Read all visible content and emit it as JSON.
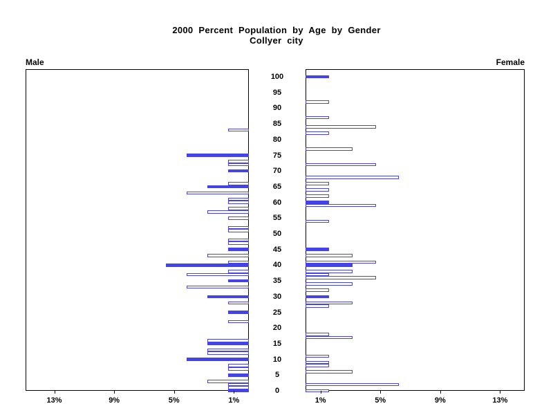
{
  "chart_data": {
    "type": "bar",
    "variant": "population-pyramid",
    "title": "2000 Percent Population by Age by Gender",
    "subtitle": "Collyer city",
    "left_panel_label": "Male",
    "right_panel_label": "Female",
    "x_axis": {
      "unit": "%",
      "max_percent": 15,
      "male_tick_labels": [
        "13%",
        "9%",
        "5%",
        "1%"
      ],
      "male_tick_percents": [
        13,
        9,
        5,
        1
      ],
      "female_tick_labels": [
        "1%",
        "5%",
        "9%",
        "13%"
      ],
      "female_tick_percents": [
        1,
        5,
        9,
        13
      ]
    },
    "y_axis": {
      "min_age": 0,
      "max_age": 100,
      "tick_interval": 5,
      "tick_ages": [
        0,
        5,
        10,
        15,
        20,
        25,
        30,
        35,
        40,
        45,
        50,
        55,
        60,
        65,
        70,
        75,
        80,
        85,
        90,
        95,
        100
      ]
    },
    "colors": {
      "bar_blue": "#4343e8",
      "axis_black": "#000000",
      "background": "#ffffff"
    },
    "male_bars": [
      {
        "age": 0,
        "percent": 1.39,
        "solid": true
      },
      {
        "age": 1,
        "percent": 1.39,
        "solid": false
      },
      {
        "age": 2,
        "percent": 1.39,
        "solid": false
      },
      {
        "age": 3,
        "percent": 2.78,
        "solid": false
      },
      {
        "age": 5,
        "percent": 1.39,
        "solid": true
      },
      {
        "age": 7,
        "percent": 1.39,
        "solid": false
      },
      {
        "age": 8,
        "percent": 1.39,
        "solid": false
      },
      {
        "age": 10,
        "percent": 4.17,
        "solid": true
      },
      {
        "age": 12,
        "percent": 2.78,
        "solid": false
      },
      {
        "age": 13,
        "percent": 2.78,
        "solid": false
      },
      {
        "age": 15,
        "percent": 2.78,
        "solid": true
      },
      {
        "age": 16,
        "percent": 2.78,
        "solid": false
      },
      {
        "age": 22,
        "percent": 1.39,
        "solid": false
      },
      {
        "age": 25,
        "percent": 1.39,
        "solid": true
      },
      {
        "age": 28,
        "percent": 1.39,
        "solid": false
      },
      {
        "age": 30,
        "percent": 2.78,
        "solid": true
      },
      {
        "age": 33,
        "percent": 4.17,
        "solid": false
      },
      {
        "age": 35,
        "percent": 1.39,
        "solid": true
      },
      {
        "age": 37,
        "percent": 4.17,
        "solid": false
      },
      {
        "age": 38,
        "percent": 1.39,
        "solid": false
      },
      {
        "age": 40,
        "percent": 5.56,
        "solid": true
      },
      {
        "age": 41,
        "percent": 1.39,
        "solid": false
      },
      {
        "age": 43,
        "percent": 2.78,
        "solid": false
      },
      {
        "age": 45,
        "percent": 1.39,
        "solid": true
      },
      {
        "age": 47,
        "percent": 1.39,
        "solid": false
      },
      {
        "age": 48,
        "percent": 1.39,
        "solid": false
      },
      {
        "age": 51,
        "percent": 1.39,
        "solid": false
      },
      {
        "age": 52,
        "percent": 1.39,
        "solid": false
      },
      {
        "age": 55,
        "percent": 1.39,
        "solid": false
      },
      {
        "age": 57,
        "percent": 2.78,
        "solid": false
      },
      {
        "age": 58,
        "percent": 1.39,
        "solid": false
      },
      {
        "age": 60,
        "percent": 1.39,
        "solid": false
      },
      {
        "age": 61,
        "percent": 1.39,
        "solid": false
      },
      {
        "age": 63,
        "percent": 4.17,
        "solid": false
      },
      {
        "age": 65,
        "percent": 2.78,
        "solid": true
      },
      {
        "age": 66,
        "percent": 1.39,
        "solid": false
      },
      {
        "age": 70,
        "percent": 1.39,
        "solid": true
      },
      {
        "age": 72,
        "percent": 1.39,
        "solid": false
      },
      {
        "age": 73,
        "percent": 1.39,
        "solid": false
      },
      {
        "age": 75,
        "percent": 4.17,
        "solid": true
      },
      {
        "age": 83,
        "percent": 1.39,
        "solid": false
      }
    ],
    "female_bars": [
      {
        "age": 0,
        "percent": 1.56,
        "solid": false
      },
      {
        "age": 2,
        "percent": 6.25,
        "solid": false
      },
      {
        "age": 6,
        "percent": 3.13,
        "solid": false
      },
      {
        "age": 8,
        "percent": 1.56,
        "solid": false
      },
      {
        "age": 9,
        "percent": 1.56,
        "solid": false
      },
      {
        "age": 11,
        "percent": 1.56,
        "solid": false
      },
      {
        "age": 17,
        "percent": 3.13,
        "solid": false
      },
      {
        "age": 18,
        "percent": 1.56,
        "solid": false
      },
      {
        "age": 27,
        "percent": 1.56,
        "solid": false
      },
      {
        "age": 28,
        "percent": 3.13,
        "solid": false
      },
      {
        "age": 30,
        "percent": 1.56,
        "solid": true
      },
      {
        "age": 32,
        "percent": 1.56,
        "solid": false
      },
      {
        "age": 34,
        "percent": 3.13,
        "solid": false
      },
      {
        "age": 36,
        "percent": 4.69,
        "solid": false
      },
      {
        "age": 37,
        "percent": 1.56,
        "solid": false
      },
      {
        "age": 38,
        "percent": 3.13,
        "solid": false
      },
      {
        "age": 40,
        "percent": 3.13,
        "solid": true
      },
      {
        "age": 41,
        "percent": 4.69,
        "solid": false
      },
      {
        "age": 43,
        "percent": 3.13,
        "solid": false
      },
      {
        "age": 45,
        "percent": 1.56,
        "solid": true
      },
      {
        "age": 54,
        "percent": 1.56,
        "solid": false
      },
      {
        "age": 59,
        "percent": 4.69,
        "solid": false
      },
      {
        "age": 60,
        "percent": 1.56,
        "solid": true
      },
      {
        "age": 62,
        "percent": 1.56,
        "solid": false
      },
      {
        "age": 64,
        "percent": 1.56,
        "solid": false
      },
      {
        "age": 66,
        "percent": 1.56,
        "solid": false
      },
      {
        "age": 68,
        "percent": 6.25,
        "solid": false
      },
      {
        "age": 72,
        "percent": 4.69,
        "solid": false
      },
      {
        "age": 77,
        "percent": 3.13,
        "solid": false
      },
      {
        "age": 82,
        "percent": 1.56,
        "solid": false
      },
      {
        "age": 84,
        "percent": 4.69,
        "solid": false
      },
      {
        "age": 87,
        "percent": 1.56,
        "solid": false
      },
      {
        "age": 92,
        "percent": 1.56,
        "solid": false
      },
      {
        "age": 100,
        "percent": 1.56,
        "solid": true
      }
    ]
  }
}
